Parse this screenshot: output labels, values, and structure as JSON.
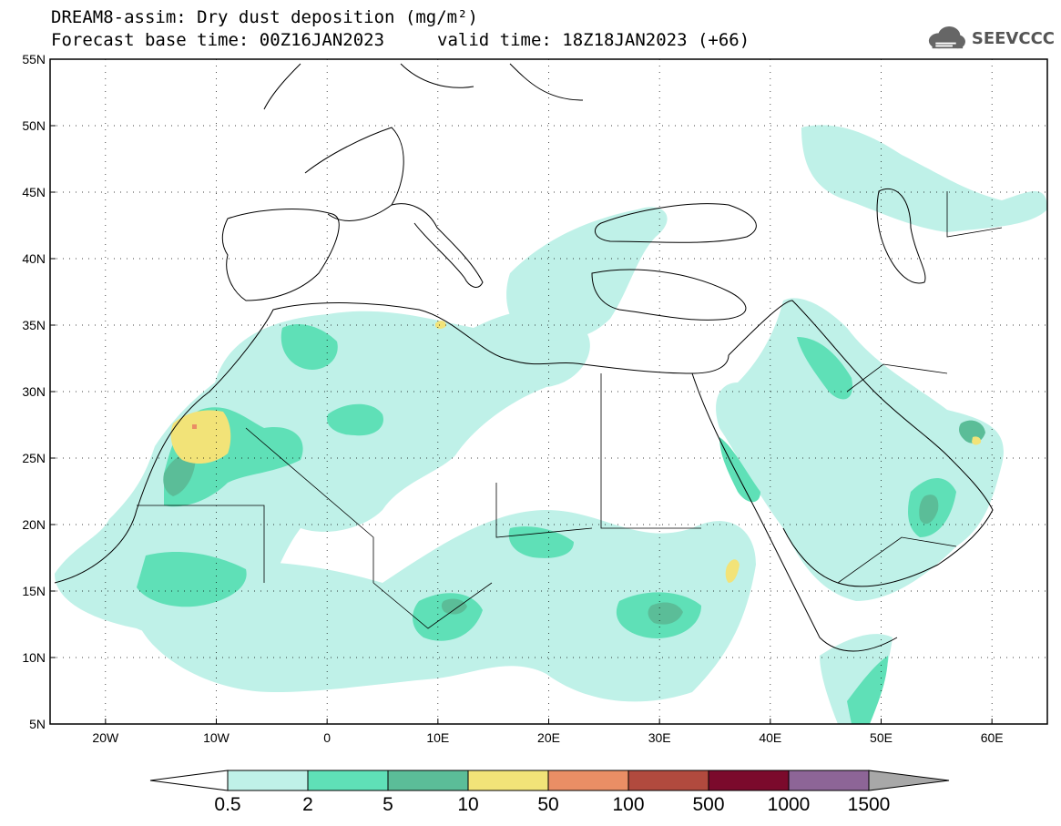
{
  "header": {
    "title": "DREAM8-assim: Dry dust deposition (mg/m²)",
    "base_time": "Forecast base time: 00Z16JAN2023",
    "valid_time": "valid time: 18Z18JAN2023 (+66)"
  },
  "logo": {
    "text": "SEEVCCC",
    "icon": "cloud-logo-icon"
  },
  "map": {
    "lon_range": [
      -25,
      65
    ],
    "lat_range": [
      5,
      55
    ],
    "lat_labels": [
      "55N",
      "50N",
      "45N",
      "40N",
      "35N",
      "30N",
      "25N",
      "20N",
      "15N",
      "10N",
      "5N"
    ],
    "lon_labels": [
      "20W",
      "10W",
      "0",
      "10E",
      "20E",
      "30E",
      "40E",
      "50E",
      "60E"
    ]
  },
  "legend": {
    "labels": [
      "0.5",
      "2",
      "5",
      "10",
      "50",
      "100",
      "500",
      "1000",
      "1500"
    ],
    "colors": [
      "#bff1e8",
      "#5fe0b7",
      "#5bbd98",
      "#f2e378",
      "#ea8e65",
      "#b14a3e",
      "#7b0a2c",
      "#8d6597",
      "#a8a8a8"
    ]
  }
}
